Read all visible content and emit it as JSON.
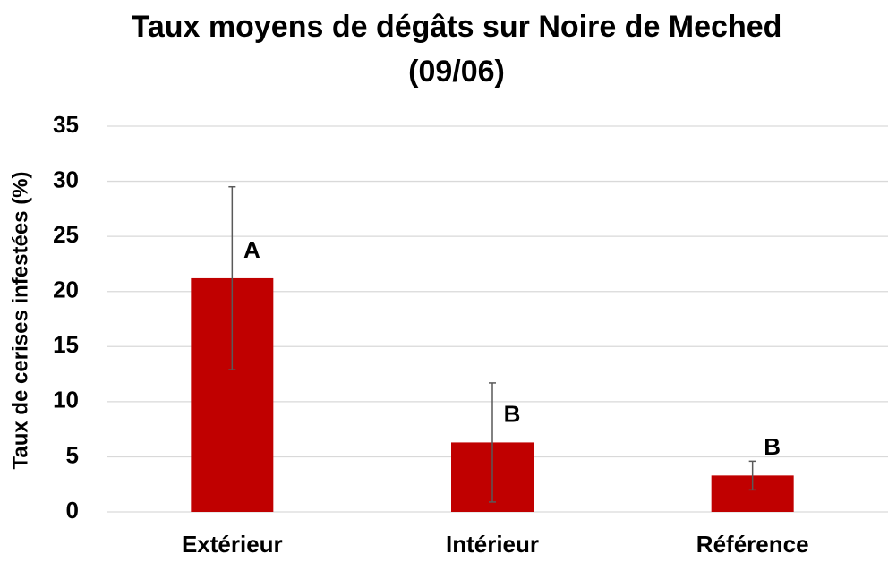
{
  "chart_data": {
    "type": "bar",
    "title": [
      "Taux moyens de dégâts sur Noire de Meched",
      "(09/06)"
    ],
    "y_label": "Taux de cerises infestées (%)",
    "categories": [
      "Extérieur",
      "Intérieur",
      "Référence"
    ],
    "values": [
      21.2,
      6.3,
      3.3
    ],
    "errors": [
      8.3,
      5.4,
      1.3
    ],
    "annotations": [
      "A",
      "B",
      "B"
    ],
    "color": "#c00000",
    "ylim": [
      0,
      35
    ],
    "yticks": [
      0,
      5,
      10,
      15,
      20,
      25,
      30,
      35
    ],
    "grid": true
  }
}
